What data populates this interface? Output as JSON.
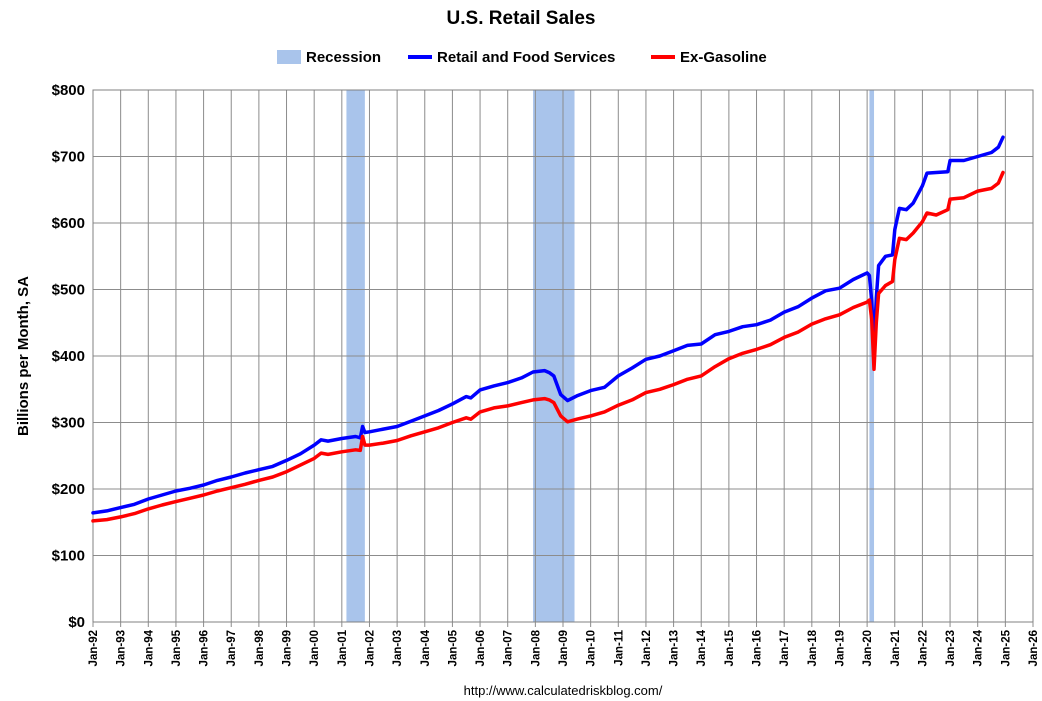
{
  "chart_data": {
    "type": "line",
    "title": "U.S. Retail Sales",
    "ylabel": "Billions per Month, SA",
    "xlabel": "",
    "source": "http://www.calculatedriskblog.com/",
    "ylim": [
      0,
      800
    ],
    "yticks": [
      {
        "value": 0,
        "label": "$0"
      },
      {
        "value": 100,
        "label": "$100"
      },
      {
        "value": 200,
        "label": "$200"
      },
      {
        "value": 300,
        "label": "$300"
      },
      {
        "value": 400,
        "label": "$400"
      },
      {
        "value": 500,
        "label": "$500"
      },
      {
        "value": 600,
        "label": "$600"
      },
      {
        "value": 700,
        "label": "$700"
      },
      {
        "value": 800,
        "label": "$800"
      }
    ],
    "xlim": [
      "1992-01",
      "2026-01"
    ],
    "xticks": [
      "Jan-92",
      "Jan-93",
      "Jan-94",
      "Jan-95",
      "Jan-96",
      "Jan-97",
      "Jan-98",
      "Jan-99",
      "Jan-00",
      "Jan-01",
      "Jan-02",
      "Jan-03",
      "Jan-04",
      "Jan-05",
      "Jan-06",
      "Jan-07",
      "Jan-08",
      "Jan-09",
      "Jan-10",
      "Jan-11",
      "Jan-12",
      "Jan-13",
      "Jan-14",
      "Jan-15",
      "Jan-16",
      "Jan-17",
      "Jan-18",
      "Jan-19",
      "Jan-20",
      "Jan-21",
      "Jan-22",
      "Jan-23",
      "Jan-24",
      "Jan-25",
      "Jan-26"
    ],
    "grid": true,
    "legend_position": "top",
    "legend": [
      {
        "label": "Recession",
        "kind": "band",
        "color": "#a9c4eb"
      },
      {
        "label": "Retail and Food Services",
        "kind": "line",
        "color": "#0000ff"
      },
      {
        "label": "Ex-Gasoline",
        "kind": "line",
        "color": "#ff0000"
      }
    ],
    "recessions": [
      {
        "start": "2001-03",
        "end": "2001-11"
      },
      {
        "start": "2007-12",
        "end": "2009-06"
      },
      {
        "start": "2020-02",
        "end": "2020-04"
      }
    ],
    "series": [
      {
        "name": "Retail and Food Services",
        "color": "#0000ff",
        "points": [
          [
            "1992-01",
            164
          ],
          [
            "1992-07",
            167
          ],
          [
            "1993-01",
            172
          ],
          [
            "1993-07",
            177
          ],
          [
            "1994-01",
            185
          ],
          [
            "1994-07",
            191
          ],
          [
            "1995-01",
            197
          ],
          [
            "1995-07",
            201
          ],
          [
            "1996-01",
            206
          ],
          [
            "1996-07",
            213
          ],
          [
            "1997-01",
            218
          ],
          [
            "1997-07",
            224
          ],
          [
            "1998-01",
            229
          ],
          [
            "1998-07",
            234
          ],
          [
            "1999-01",
            243
          ],
          [
            "1999-07",
            253
          ],
          [
            "2000-01",
            266
          ],
          [
            "2000-04",
            274
          ],
          [
            "2000-07",
            272
          ],
          [
            "2001-01",
            276
          ],
          [
            "2001-07",
            279
          ],
          [
            "2001-09",
            277
          ],
          [
            "2001-10",
            294
          ],
          [
            "2001-11",
            285
          ],
          [
            "2002-01",
            286
          ],
          [
            "2002-07",
            290
          ],
          [
            "2003-01",
            294
          ],
          [
            "2003-07",
            302
          ],
          [
            "2004-01",
            310
          ],
          [
            "2004-07",
            318
          ],
          [
            "2005-01",
            328
          ],
          [
            "2005-07",
            339
          ],
          [
            "2005-09",
            337
          ],
          [
            "2006-01",
            349
          ],
          [
            "2006-07",
            355
          ],
          [
            "2007-01",
            360
          ],
          [
            "2007-07",
            367
          ],
          [
            "2007-12",
            376
          ],
          [
            "2008-05",
            378
          ],
          [
            "2008-07",
            375
          ],
          [
            "2008-09",
            370
          ],
          [
            "2008-12",
            342
          ],
          [
            "2009-03",
            333
          ],
          [
            "2009-07",
            340
          ],
          [
            "2010-01",
            348
          ],
          [
            "2010-07",
            353
          ],
          [
            "2011-01",
            370
          ],
          [
            "2011-07",
            382
          ],
          [
            "2012-01",
            395
          ],
          [
            "2012-07",
            400
          ],
          [
            "2013-01",
            408
          ],
          [
            "2013-07",
            416
          ],
          [
            "2014-01",
            418
          ],
          [
            "2014-07",
            432
          ],
          [
            "2015-01",
            437
          ],
          [
            "2015-07",
            444
          ],
          [
            "2016-01",
            447
          ],
          [
            "2016-07",
            454
          ],
          [
            "2017-01",
            466
          ],
          [
            "2017-07",
            474
          ],
          [
            "2018-01",
            487
          ],
          [
            "2018-07",
            498
          ],
          [
            "2019-01",
            502
          ],
          [
            "2019-07",
            515
          ],
          [
            "2020-01",
            525
          ],
          [
            "2020-02",
            521
          ],
          [
            "2020-03",
            483
          ],
          [
            "2020-04",
            413
          ],
          [
            "2020-05",
            487
          ],
          [
            "2020-06",
            536
          ],
          [
            "2020-09",
            550
          ],
          [
            "2020-12",
            552
          ],
          [
            "2021-01",
            590
          ],
          [
            "2021-03",
            622
          ],
          [
            "2021-06",
            620
          ],
          [
            "2021-09",
            630
          ],
          [
            "2022-01",
            656
          ],
          [
            "2022-03",
            675
          ],
          [
            "2022-07",
            676
          ],
          [
            "2022-12",
            677
          ],
          [
            "2023-01",
            694
          ],
          [
            "2023-07",
            694
          ],
          [
            "2024-01",
            700
          ],
          [
            "2024-07",
            706
          ],
          [
            "2024-10",
            714
          ],
          [
            "2024-12",
            729
          ]
        ]
      },
      {
        "name": "Ex-Gasoline",
        "color": "#ff0000",
        "points": [
          [
            "1992-01",
            152
          ],
          [
            "1992-07",
            154
          ],
          [
            "1993-01",
            158
          ],
          [
            "1993-07",
            163
          ],
          [
            "1994-01",
            170
          ],
          [
            "1994-07",
            176
          ],
          [
            "1995-01",
            181
          ],
          [
            "1995-07",
            186
          ],
          [
            "1996-01",
            191
          ],
          [
            "1996-07",
            197
          ],
          [
            "1997-01",
            202
          ],
          [
            "1997-07",
            207
          ],
          [
            "1998-01",
            213
          ],
          [
            "1998-07",
            218
          ],
          [
            "1999-01",
            226
          ],
          [
            "1999-07",
            236
          ],
          [
            "2000-01",
            246
          ],
          [
            "2000-04",
            254
          ],
          [
            "2000-07",
            252
          ],
          [
            "2001-01",
            256
          ],
          [
            "2001-07",
            259
          ],
          [
            "2001-09",
            258
          ],
          [
            "2001-10",
            279
          ],
          [
            "2001-11",
            266
          ],
          [
            "2002-01",
            266
          ],
          [
            "2002-07",
            269
          ],
          [
            "2003-01",
            273
          ],
          [
            "2003-07",
            280
          ],
          [
            "2004-01",
            286
          ],
          [
            "2004-07",
            292
          ],
          [
            "2005-01",
            300
          ],
          [
            "2005-07",
            307
          ],
          [
            "2005-09",
            305
          ],
          [
            "2006-01",
            316
          ],
          [
            "2006-07",
            322
          ],
          [
            "2007-01",
            325
          ],
          [
            "2007-07",
            330
          ],
          [
            "2007-12",
            334
          ],
          [
            "2008-05",
            336
          ],
          [
            "2008-07",
            334
          ],
          [
            "2008-09",
            330
          ],
          [
            "2008-12",
            310
          ],
          [
            "2009-03",
            301
          ],
          [
            "2009-07",
            305
          ],
          [
            "2010-01",
            310
          ],
          [
            "2010-07",
            316
          ],
          [
            "2011-01",
            326
          ],
          [
            "2011-07",
            334
          ],
          [
            "2012-01",
            345
          ],
          [
            "2012-07",
            350
          ],
          [
            "2013-01",
            357
          ],
          [
            "2013-07",
            365
          ],
          [
            "2014-01",
            370
          ],
          [
            "2014-07",
            384
          ],
          [
            "2015-01",
            396
          ],
          [
            "2015-07",
            404
          ],
          [
            "2016-01",
            410
          ],
          [
            "2016-07",
            417
          ],
          [
            "2017-01",
            428
          ],
          [
            "2017-07",
            436
          ],
          [
            "2018-01",
            448
          ],
          [
            "2018-07",
            456
          ],
          [
            "2019-01",
            462
          ],
          [
            "2019-07",
            473
          ],
          [
            "2020-01",
            481
          ],
          [
            "2020-02",
            484
          ],
          [
            "2020-03",
            455
          ],
          [
            "2020-04",
            380
          ],
          [
            "2020-05",
            450
          ],
          [
            "2020-06",
            494
          ],
          [
            "2020-09",
            506
          ],
          [
            "2020-12",
            512
          ],
          [
            "2021-01",
            545
          ],
          [
            "2021-03",
            577
          ],
          [
            "2021-06",
            575
          ],
          [
            "2021-09",
            585
          ],
          [
            "2022-01",
            602
          ],
          [
            "2022-03",
            615
          ],
          [
            "2022-07",
            612
          ],
          [
            "2022-12",
            620
          ],
          [
            "2023-01",
            636
          ],
          [
            "2023-07",
            638
          ],
          [
            "2024-01",
            648
          ],
          [
            "2024-07",
            652
          ],
          [
            "2024-10",
            660
          ],
          [
            "2024-12",
            676
          ]
        ]
      }
    ]
  }
}
